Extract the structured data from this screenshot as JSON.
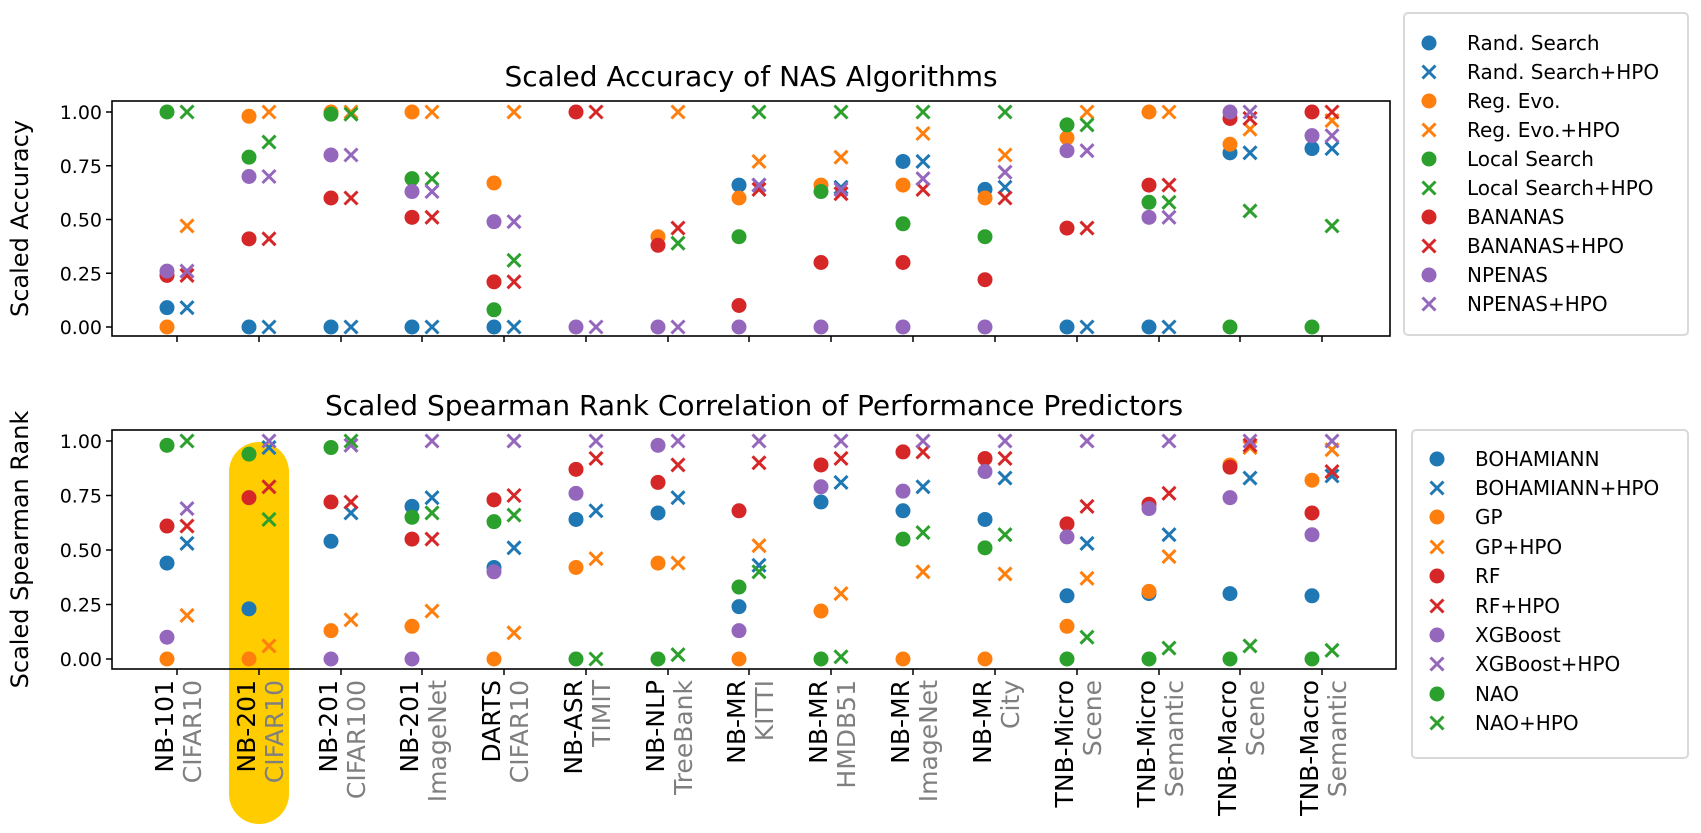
{
  "chart_data": [
    {
      "type": "scatter",
      "title": "Scaled Accuracy of NAS Algorithms",
      "ylabel": "Scaled Accuracy",
      "ylim": [
        0,
        1
      ],
      "yticks": [
        "0.00",
        "0.25",
        "0.50",
        "0.75",
        "1.00"
      ],
      "legend_position": "upper-right-outside",
      "series": [
        {
          "name": "Rand. Search",
          "marker": "circle",
          "color": "#1f77b4",
          "values": [
            0.09,
            0,
            0,
            0,
            0,
            null,
            null,
            0.66,
            null,
            0.77,
            0.64,
            0,
            0,
            0.81,
            0.83
          ]
        },
        {
          "name": "Rand. Search+HPO",
          "marker": "x",
          "color": "#1f77b4",
          "values": [
            0.09,
            0,
            0,
            0,
            0,
            null,
            null,
            0.66,
            0.65,
            0.77,
            0.65,
            0,
            0,
            0.81,
            0.83
          ]
        },
        {
          "name": "Reg. Evo.",
          "marker": "circle",
          "color": "#ff7f0e",
          "values": [
            0,
            0.98,
            1.0,
            1.0,
            0.67,
            null,
            0.42,
            0.6,
            0.66,
            0.66,
            0.6,
            0.88,
            1.0,
            0.85,
            null
          ]
        },
        {
          "name": "Reg. Evo.+HPO",
          "marker": "x",
          "color": "#ff7f0e",
          "values": [
            0.47,
            1.0,
            1.0,
            1.0,
            1.0,
            null,
            1.0,
            0.77,
            0.79,
            0.9,
            0.8,
            1.0,
            1.0,
            0.92,
            0.96
          ]
        },
        {
          "name": "Local Search",
          "marker": "circle",
          "color": "#2ca02c",
          "values": [
            1.0,
            0.79,
            0.99,
            0.69,
            0.08,
            null,
            null,
            0.42,
            0.63,
            0.48,
            0.42,
            0.94,
            0.58,
            0,
            0
          ]
        },
        {
          "name": "Local Search+HPO",
          "marker": "x",
          "color": "#2ca02c",
          "values": [
            1.0,
            0.86,
            0.99,
            0.69,
            0.31,
            null,
            0.39,
            1.0,
            1.0,
            1.0,
            1.0,
            0.94,
            0.58,
            0.54,
            0.47
          ]
        },
        {
          "name": "BANANAS",
          "marker": "circle",
          "color": "#d62728",
          "values": [
            0.24,
            0.41,
            0.6,
            0.51,
            0.21,
            1.0,
            0.38,
            0.1,
            0.3,
            0.3,
            0.22,
            0.46,
            0.66,
            0.97,
            1.0
          ]
        },
        {
          "name": "BANANAS+HPO",
          "marker": "x",
          "color": "#d62728",
          "values": [
            0.24,
            0.41,
            0.6,
            0.51,
            0.21,
            1.0,
            0.46,
            0.64,
            0.62,
            0.64,
            0.6,
            0.46,
            0.66,
            0.97,
            1.0
          ]
        },
        {
          "name": "NPENAS",
          "marker": "circle",
          "color": "#9467bd",
          "values": [
            0.26,
            0.7,
            0.8,
            0.63,
            0.49,
            0,
            0,
            0,
            0,
            0,
            0,
            0.82,
            0.51,
            1.0,
            0.89
          ]
        },
        {
          "name": "NPENAS+HPO",
          "marker": "x",
          "color": "#9467bd",
          "values": [
            0.26,
            0.7,
            0.8,
            0.63,
            0.49,
            0,
            0,
            0.66,
            0.64,
            0.69,
            0.72,
            0.82,
            0.51,
            1.0,
            0.89
          ]
        }
      ]
    },
    {
      "type": "scatter",
      "title": "Scaled Spearman Rank Correlation of Performance Predictors",
      "ylabel": "Scaled Spearman Rank",
      "ylim": [
        0,
        1
      ],
      "yticks": [
        "0.00",
        "0.25",
        "0.50",
        "0.75",
        "1.00"
      ],
      "categories": [
        {
          "line1": "NB-101",
          "line2": "CIFAR10"
        },
        {
          "line1": "NB-201",
          "line2": "CIFAR10"
        },
        {
          "line1": "NB-201",
          "line2": "CIFAR100"
        },
        {
          "line1": "NB-201",
          "line2": "ImageNet"
        },
        {
          "line1": "DARTS",
          "line2": "CIFAR10"
        },
        {
          "line1": "NB-ASR",
          "line2": "TIMIT"
        },
        {
          "line1": "NB-NLP",
          "line2": "TreeBank"
        },
        {
          "line1": "NB-MR",
          "line2": "KITTI"
        },
        {
          "line1": "NB-MR",
          "line2": "HMDB51"
        },
        {
          "line1": "NB-MR",
          "line2": "ImageNet"
        },
        {
          "line1": "NB-MR",
          "line2": "City"
        },
        {
          "line1": "TNB-Micro",
          "line2": "Scene"
        },
        {
          "line1": "TNB-Micro",
          "line2": "Semantic"
        },
        {
          "line1": "TNB-Macro",
          "line2": "Scene"
        },
        {
          "line1": "TNB-Macro",
          "line2": "Semantic"
        }
      ],
      "highlighted_category": 1,
      "highlight_color": "#ffcc00",
      "legend_position": "right-outside",
      "series": [
        {
          "name": "BOHAMIANN",
          "marker": "circle",
          "color": "#1f77b4",
          "values": [
            0.44,
            0.23,
            0.54,
            0.7,
            0.42,
            0.64,
            0.67,
            0.24,
            0.72,
            0.68,
            0.64,
            0.29,
            0.3,
            0.3,
            0.29
          ]
        },
        {
          "name": "BOHAMIANN+HPO",
          "marker": "x",
          "color": "#1f77b4",
          "values": [
            0.53,
            0.97,
            0.67,
            0.74,
            0.51,
            0.68,
            0.74,
            0.43,
            0.81,
            0.79,
            0.83,
            0.53,
            0.57,
            0.83,
            0.84
          ]
        },
        {
          "name": "GP",
          "marker": "circle",
          "color": "#ff7f0e",
          "values": [
            0,
            0,
            0.13,
            0.15,
            0,
            0.42,
            0.44,
            0,
            0.22,
            0,
            0,
            0.15,
            0.31,
            0.89,
            0.82
          ]
        },
        {
          "name": "GP+HPO",
          "marker": "x",
          "color": "#ff7f0e",
          "values": [
            0.2,
            0.06,
            0.18,
            0.22,
            0.12,
            0.46,
            0.44,
            0.52,
            0.3,
            0.4,
            0.39,
            0.37,
            0.47,
            0.97,
            0.96
          ]
        },
        {
          "name": "RF",
          "marker": "circle",
          "color": "#d62728",
          "values": [
            0.61,
            0.74,
            0.72,
            0.55,
            0.73,
            0.87,
            0.81,
            0.68,
            0.89,
            0.95,
            0.92,
            0.62,
            0.71,
            0.88,
            0.67
          ]
        },
        {
          "name": "RF+HPO",
          "marker": "x",
          "color": "#d62728",
          "values": [
            0.61,
            0.79,
            0.72,
            0.55,
            0.75,
            0.92,
            0.89,
            0.9,
            0.92,
            0.95,
            0.92,
            0.7,
            0.76,
            0.98,
            0.86
          ]
        },
        {
          "name": "XGBoost",
          "marker": "circle",
          "color": "#9467bd",
          "values": [
            0.1,
            null,
            0,
            0,
            0.4,
            0.76,
            0.98,
            0.13,
            0.79,
            0.77,
            0.86,
            0.56,
            0.69,
            0.74,
            0.57
          ]
        },
        {
          "name": "XGBoost+HPO",
          "marker": "x",
          "color": "#9467bd",
          "values": [
            0.69,
            1.0,
            0.98,
            1.0,
            1.0,
            1.0,
            1.0,
            1.0,
            1.0,
            1.0,
            1.0,
            1.0,
            1.0,
            1.0,
            1.0
          ]
        },
        {
          "name": "NAO",
          "marker": "circle",
          "color": "#2ca02c",
          "values": [
            0.98,
            0.94,
            0.97,
            0.65,
            0.63,
            0,
            0,
            0.33,
            0,
            0.55,
            0.51,
            0,
            0,
            0,
            0
          ]
        },
        {
          "name": "NAO+HPO",
          "marker": "x",
          "color": "#2ca02c",
          "values": [
            1.0,
            0.64,
            1.0,
            0.67,
            0.66,
            0,
            0.02,
            0.4,
            0.01,
            0.58,
            0.57,
            0.1,
            0.05,
            0.06,
            0.04
          ]
        }
      ]
    }
  ]
}
